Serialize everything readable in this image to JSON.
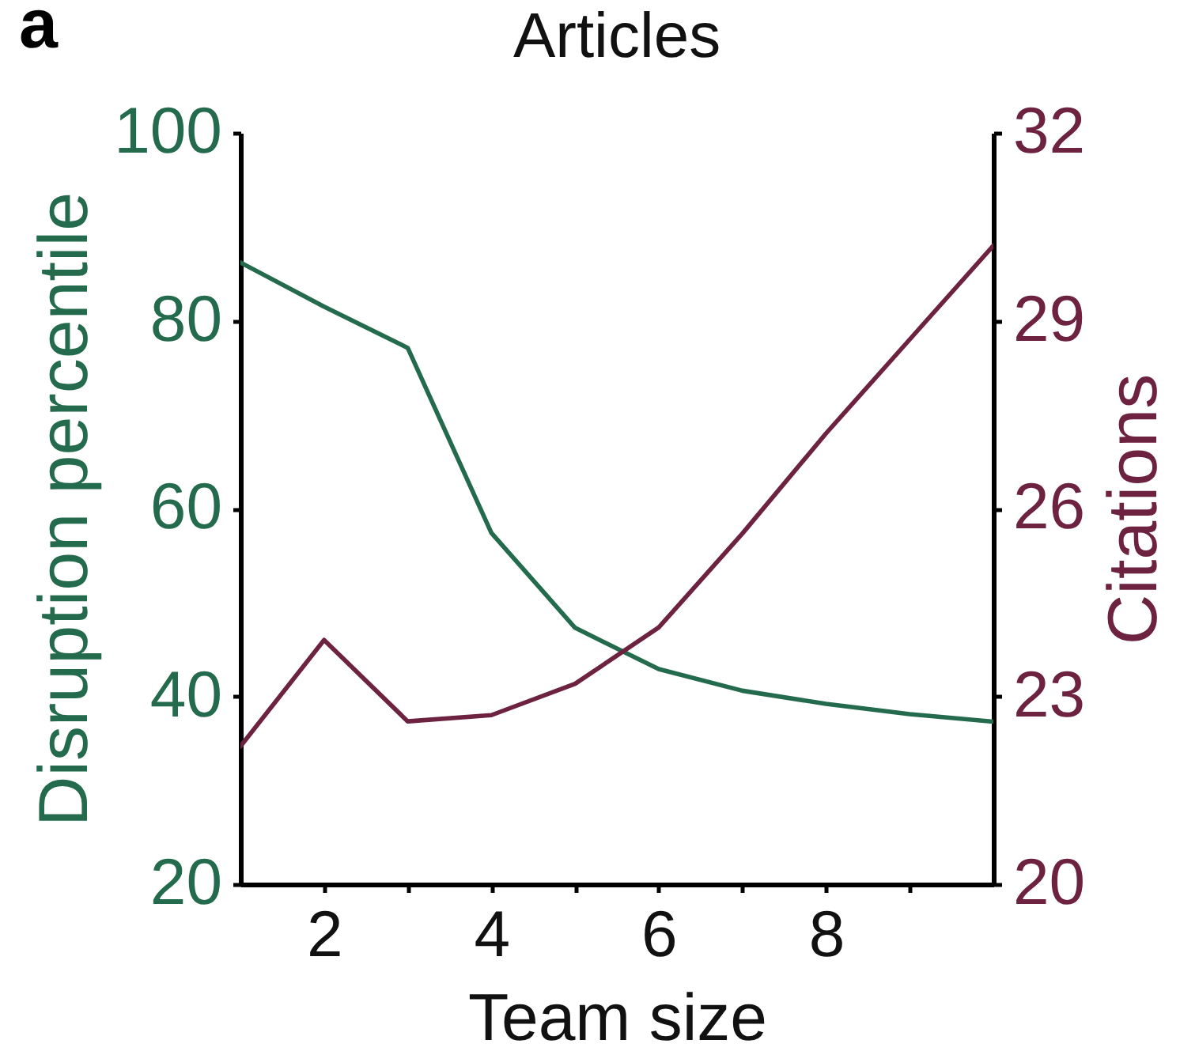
{
  "chart_data": {
    "type": "line",
    "title": "Articles",
    "xlabel": "Team size",
    "ylabel": "Disruption percentile",
    "y2label": "Citations",
    "annotations": [
      "a"
    ],
    "x": [
      1,
      2,
      3,
      4,
      5,
      6,
      7,
      8,
      9,
      10
    ],
    "series": [
      {
        "color": "#236b4c",
        "values": [
          86.2,
          81.5,
          77.1,
          57.4,
          47.3,
          42.9,
          40.6,
          39.2,
          38.1,
          37.3
        ]
      },
      {
        "color": "#6d2240",
        "axis": "y2",
        "values": [
          22.2,
          23.9,
          22.6,
          22.7,
          23.2,
          24.1,
          25.6,
          27.2,
          28.7,
          30.2
        ]
      }
    ],
    "xlim": [
      1,
      10
    ],
    "xticks": [
      2,
      {
        "value": 3,
        "label": null
      },
      4,
      {
        "value": 5,
        "label": null
      },
      6,
      {
        "value": 7,
        "label": null
      },
      8,
      {
        "value": 9,
        "label": null
      }
    ],
    "ylim": [
      20,
      100
    ],
    "yticks": [
      20,
      40,
      60,
      80,
      100
    ],
    "y2lim": [
      20,
      32
    ],
    "y2ticks": [
      20,
      23,
      26,
      29,
      32
    ],
    "grid": false,
    "line_style": "solid"
  }
}
